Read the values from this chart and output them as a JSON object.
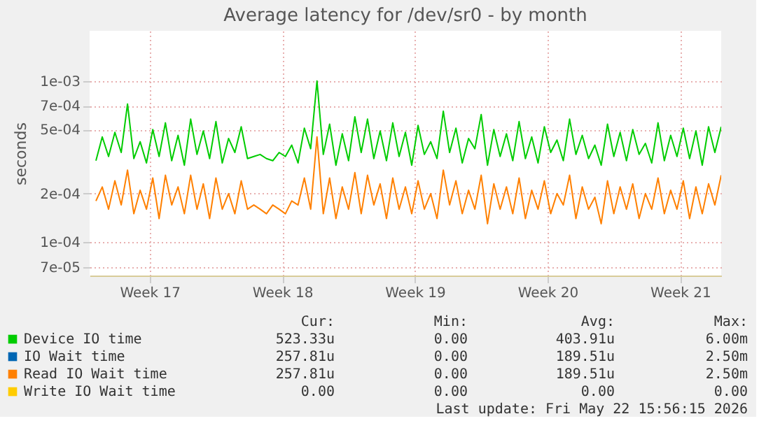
{
  "chart_data": {
    "type": "line",
    "title": "Average latency for /dev/sr0 - by month",
    "ylabel": "seconds",
    "x": [
      "2026-04-19T16:00",
      "2026-04-20T00:00",
      "2026-04-20T08:00",
      "2026-04-20T16:00",
      "2026-04-21T00:00",
      "2026-04-21T08:00",
      "2026-04-21T16:00",
      "2026-04-22T00:00",
      "2026-04-22T08:00",
      "2026-04-22T16:00",
      "2026-04-23T00:00",
      "2026-04-23T08:00",
      "2026-04-23T16:00",
      "2026-04-24T00:00",
      "2026-04-24T08:00",
      "2026-04-24T16:00",
      "2026-04-25T00:00",
      "2026-04-25T08:00",
      "2026-04-25T16:00",
      "2026-04-26T00:00",
      "2026-04-26T08:00",
      "2026-04-26T16:00",
      "2026-04-27T00:00",
      "2026-04-27T08:00",
      "2026-04-27T16:00",
      "2026-04-28T00:00",
      "2026-04-28T08:00",
      "2026-04-28T16:00",
      "2026-04-29T00:00",
      "2026-04-29T08:00",
      "2026-04-29T16:00",
      "2026-04-30T00:00",
      "2026-04-30T08:00",
      "2026-04-30T16:00",
      "2026-05-01T00:00",
      "2026-05-01T08:00",
      "2026-05-01T16:00",
      "2026-05-02T00:00",
      "2026-05-02T08:00",
      "2026-05-02T16:00",
      "2026-05-03T00:00",
      "2026-05-03T08:00",
      "2026-05-03T16:00",
      "2026-05-04T00:00",
      "2026-05-04T08:00",
      "2026-05-04T16:00",
      "2026-05-05T00:00",
      "2026-05-05T08:00",
      "2026-05-05T16:00",
      "2026-05-06T00:00",
      "2026-05-06T08:00",
      "2026-05-06T16:00",
      "2026-05-07T00:00",
      "2026-05-07T08:00",
      "2026-05-07T16:00",
      "2026-05-08T00:00",
      "2026-05-08T08:00",
      "2026-05-08T16:00",
      "2026-05-09T00:00",
      "2026-05-09T08:00",
      "2026-05-09T16:00",
      "2026-05-10T00:00",
      "2026-05-10T08:00",
      "2026-05-10T16:00",
      "2026-05-11T00:00",
      "2026-05-11T08:00",
      "2026-05-11T16:00",
      "2026-05-12T00:00",
      "2026-05-12T08:00",
      "2026-05-12T16:00",
      "2026-05-13T00:00",
      "2026-05-13T08:00",
      "2026-05-13T16:00",
      "2026-05-14T00:00",
      "2026-05-14T08:00",
      "2026-05-14T16:00",
      "2026-05-15T00:00",
      "2026-05-15T08:00",
      "2026-05-15T16:00",
      "2026-05-16T00:00",
      "2026-05-16T08:00",
      "2026-05-16T16:00",
      "2026-05-17T00:00",
      "2026-05-17T08:00",
      "2026-05-17T16:00",
      "2026-05-18T00:00",
      "2026-05-18T08:00",
      "2026-05-18T16:00",
      "2026-05-19T00:00",
      "2026-05-19T08:00",
      "2026-05-19T16:00",
      "2026-05-20T00:00",
      "2026-05-20T08:00",
      "2026-05-20T16:00",
      "2026-05-21T00:00",
      "2026-05-21T08:00",
      "2026-05-21T16:00",
      "2026-05-22T00:00",
      "2026-05-22T08:00",
      "2026-05-22T16:00"
    ],
    "xlim": [
      "2026-04-19T08:00",
      "2026-05-22T16:00"
    ],
    "xticks": [
      {
        "value": "2026-04-22T12:00",
        "label": "Week 17"
      },
      {
        "value": "2026-04-29T12:00",
        "label": "Week 18"
      },
      {
        "value": "2026-05-06T12:00",
        "label": "Week 19"
      },
      {
        "value": "2026-05-13T12:00",
        "label": "Week 20"
      },
      {
        "value": "2026-05-20T12:00",
        "label": "Week 21"
      }
    ],
    "ylim": [
      6.2e-05,
      0.00205
    ],
    "log": true,
    "yticks": [
      {
        "value": 7e-05,
        "label": "7e-05"
      },
      {
        "value": 0.0001,
        "label": "1e-04"
      },
      {
        "value": 0.0002,
        "label": "2e-04"
      },
      {
        "value": 0.0005,
        "label": "5e-04"
      },
      {
        "value": 0.0007,
        "label": "7e-04"
      },
      {
        "value": 0.001,
        "label": "1e-03"
      }
    ],
    "grid": true,
    "legend": "bottom",
    "series": [
      {
        "name": "Device IO time",
        "color": "#00cc00",
        "values": [
          0.00032,
          0.00045,
          0.00034,
          0.00048,
          0.00036,
          0.00072,
          0.00033,
          0.00042,
          0.00031,
          0.0005,
          0.00034,
          0.00055,
          0.00032,
          0.00046,
          0.0003,
          0.00058,
          0.00035,
          0.00049,
          0.00033,
          0.00056,
          0.00031,
          0.00044,
          0.00036,
          0.00052,
          0.00033,
          0.00034,
          0.00035,
          0.00033,
          0.00032,
          0.00036,
          0.00034,
          0.0004,
          0.00031,
          0.00051,
          0.00038,
          0.001,
          0.00035,
          0.00054,
          0.0003,
          0.00047,
          0.00032,
          0.0006,
          0.00036,
          0.00058,
          0.00033,
          0.00049,
          0.00032,
          0.00055,
          0.00034,
          0.00048,
          0.0003,
          0.00053,
          0.00035,
          0.00042,
          0.00033,
          0.00065,
          0.00036,
          0.00051,
          0.00031,
          0.00044,
          0.00038,
          0.00062,
          0.0003,
          0.0005,
          0.00034,
          0.00047,
          0.00032,
          0.00056,
          0.00033,
          0.00045,
          0.00031,
          0.00052,
          0.00036,
          0.00043,
          0.00032,
          0.00058,
          0.00035,
          0.00046,
          0.00033,
          0.0004,
          0.0003,
          0.00054,
          0.00034,
          0.00048,
          0.00032,
          0.0005,
          0.00035,
          0.00041,
          0.00031,
          0.00055,
          0.00032,
          0.00046,
          0.00034,
          0.00051,
          0.00033,
          0.00049,
          0.0003,
          0.00052,
          0.00036,
          0.00052
        ]
      },
      {
        "name": "IO Wait time",
        "color": "#0066b3",
        "values": [
          null,
          null,
          null,
          null,
          null,
          null,
          null,
          null,
          null,
          null,
          null,
          null,
          null,
          null,
          null,
          null,
          null,
          null,
          null,
          null,
          null,
          null,
          null,
          null,
          null,
          null,
          null,
          null,
          null,
          null,
          null,
          null,
          null,
          null,
          null,
          null,
          null,
          null,
          null,
          null,
          null,
          null,
          null,
          null,
          null,
          null,
          null,
          null,
          null,
          null,
          null,
          null,
          null,
          null,
          null,
          null,
          null,
          null,
          null,
          null,
          null,
          null,
          null,
          null,
          null,
          null,
          null,
          null,
          null,
          null,
          null,
          null,
          null,
          null,
          null,
          null,
          null,
          null,
          null,
          null,
          null,
          null,
          null,
          null,
          null,
          null,
          null,
          null,
          null,
          null,
          null,
          null,
          null,
          null,
          null,
          null,
          null,
          null,
          null,
          null
        ]
      },
      {
        "name": "Read IO Wait time",
        "color": "#ff8000",
        "values": [
          0.00018,
          0.00022,
          0.00016,
          0.00024,
          0.00017,
          0.00028,
          0.00015,
          0.00021,
          0.00016,
          0.00025,
          0.00014,
          0.00026,
          0.00017,
          0.00022,
          0.00015,
          0.00026,
          0.00016,
          0.00023,
          0.00014,
          0.00025,
          0.00016,
          0.0002,
          0.00015,
          0.00024,
          0.00016,
          0.00017,
          0.00016,
          0.00015,
          0.00017,
          0.00016,
          0.00015,
          0.00018,
          0.00017,
          0.00025,
          0.00016,
          0.00045,
          0.00015,
          0.00025,
          0.00014,
          0.00022,
          0.00016,
          0.00027,
          0.00015,
          0.00026,
          0.00017,
          0.00023,
          0.00014,
          0.00025,
          0.00016,
          0.00022,
          0.00015,
          0.00024,
          0.00016,
          0.0002,
          0.00014,
          0.00028,
          0.00017,
          0.00024,
          0.00015,
          0.00021,
          0.00016,
          0.00026,
          0.00013,
          0.00023,
          0.00016,
          0.00022,
          0.00015,
          0.00025,
          0.00014,
          0.00021,
          0.00016,
          0.00024,
          0.00015,
          0.0002,
          0.00017,
          0.00026,
          0.00014,
          0.00022,
          0.00016,
          0.00019,
          0.00013,
          0.00024,
          0.00015,
          0.00022,
          0.00016,
          0.00023,
          0.00014,
          0.0002,
          0.00016,
          0.00025,
          0.00015,
          0.00021,
          0.00016,
          0.00024,
          0.00014,
          0.00022,
          0.00015,
          0.00023,
          0.00017,
          0.00026
        ]
      },
      {
        "name": "Write IO Wait time",
        "color": "#ffcc00",
        "values": [
          null,
          null,
          null,
          null,
          null,
          null,
          null,
          null,
          null,
          null,
          null,
          null,
          null,
          null,
          null,
          null,
          null,
          null,
          null,
          null,
          null,
          null,
          null,
          null,
          null,
          null,
          null,
          null,
          null,
          null,
          null,
          null,
          null,
          null,
          null,
          null,
          null,
          null,
          null,
          null,
          null,
          null,
          null,
          null,
          null,
          null,
          null,
          null,
          null,
          null,
          null,
          null,
          null,
          null,
          null,
          null,
          null,
          null,
          null,
          null,
          null,
          null,
          null,
          null,
          null,
          null,
          null,
          null,
          null,
          null,
          null,
          null,
          null,
          null,
          null,
          null,
          null,
          null,
          null,
          null,
          null,
          null,
          null,
          null,
          null,
          null,
          null,
          null,
          null,
          null,
          null,
          null,
          null,
          null,
          null,
          null,
          null,
          null,
          null,
          null
        ]
      }
    ],
    "annotations": [
      "Cur:",
      "Min:",
      "Avg:",
      "Max:",
      "523.33u",
      "0.00",
      "403.91u",
      "6.00m",
      "257.81u",
      "0.00",
      "189.51u",
      "2.50m",
      "257.81u",
      "0.00",
      "189.51u",
      "2.50m",
      "0.00",
      "0.00",
      "0.00",
      "0.00",
      "Last update: Fri May 22 15:56:15 2026"
    ]
  }
}
